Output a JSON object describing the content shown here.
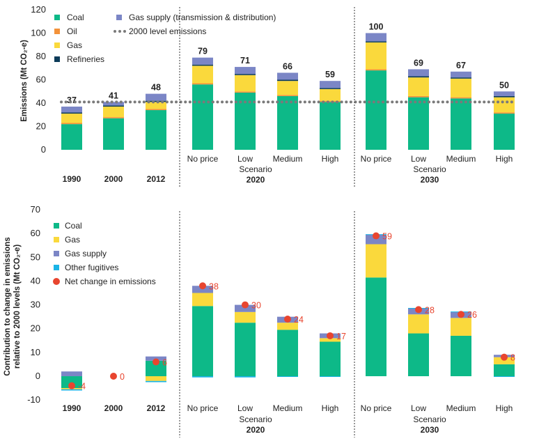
{
  "colors": {
    "coal": "#0db988",
    "oil": "#f3923a",
    "gas": "#fad93c",
    "refineries": "#0c3b59",
    "gas_supply": "#7b86c6",
    "other_fugitives": "#1ab4e6",
    "net": "#e8452f",
    "baseline": "#7a7a7a"
  },
  "chart_data": [
    {
      "type": "bar",
      "stacked": true,
      "ylabel": "Emissions (Mt CO₂-e)",
      "ylim": [
        0,
        120
      ],
      "yticks": [
        0,
        20,
        40,
        60,
        80,
        100,
        120
      ],
      "legend": {
        "col1": [
          "Coal",
          "Oil",
          "Gas",
          "Refineries"
        ],
        "col2": [
          "Gas supply (transmission & distribution)",
          "2000 level emissions"
        ]
      },
      "baseline": {
        "name": "2000 level emissions",
        "value": 41
      },
      "groups": [
        {
          "label": "1990",
          "scenario_label": "",
          "categories": [
            ""
          ]
        },
        {
          "label": "2000",
          "scenario_label": "",
          "categories": [
            ""
          ]
        },
        {
          "label": "2012",
          "scenario_label": "",
          "categories": [
            ""
          ]
        },
        {
          "label": "2020",
          "scenario_label": "Scenario",
          "categories": [
            "No price",
            "Low",
            "Medium",
            "High"
          ]
        },
        {
          "label": "2030",
          "scenario_label": "Scenario",
          "categories": [
            "No price",
            "Low",
            "Medium",
            "High"
          ]
        }
      ],
      "bars": [
        {
          "coal": 22,
          "oil": 1,
          "gas": 8,
          "refineries": 1,
          "gas_supply": 5,
          "total": "37"
        },
        {
          "coal": 27,
          "oil": 1,
          "gas": 9,
          "refineries": 1,
          "gas_supply": 3,
          "total": "41"
        },
        {
          "coal": 34,
          "oil": 1,
          "gas": 6,
          "refineries": 1,
          "gas_supply": 6,
          "total": "48"
        },
        {
          "coal": 56,
          "oil": 1,
          "gas": 15,
          "refineries": 1,
          "gas_supply": 6,
          "total": "79"
        },
        {
          "coal": 49,
          "oil": 1,
          "gas": 14,
          "refineries": 1,
          "gas_supply": 6,
          "total": "71"
        },
        {
          "coal": 46,
          "oil": 1,
          "gas": 12,
          "refineries": 1,
          "gas_supply": 6,
          "total": "66"
        },
        {
          "coal": 41,
          "oil": 1,
          "gas": 10,
          "refineries": 1,
          "gas_supply": 6,
          "total": "59"
        },
        {
          "coal": 68,
          "oil": 1,
          "gas": 23,
          "refineries": 1,
          "gas_supply": 7,
          "total": "100"
        },
        {
          "coal": 45,
          "oil": 1,
          "gas": 16,
          "refineries": 1,
          "gas_supply": 6,
          "total": "69"
        },
        {
          "coal": 44,
          "oil": 1,
          "gas": 16,
          "refineries": 1,
          "gas_supply": 5,
          "total": "67"
        },
        {
          "coal": 31,
          "oil": 1,
          "gas": 13,
          "refineries": 1,
          "gas_supply": 4,
          "total": "50"
        }
      ]
    },
    {
      "type": "bar",
      "stacked": true,
      "ylabel_line1": "Contribution to change in emissions",
      "ylabel_line2": "relative to 2000 levels (Mt CO₂-e)",
      "ylim": [
        -10,
        70
      ],
      "yticks": [
        -10,
        0,
        10,
        20,
        30,
        40,
        50,
        60,
        70
      ],
      "legend": [
        "Coal",
        "Gas",
        "Gas supply",
        "Other fugitives",
        "Net change in emissions"
      ],
      "groups": [
        {
          "label": "1990",
          "scenario_label": "",
          "categories": [
            ""
          ]
        },
        {
          "label": "2000",
          "scenario_label": "",
          "categories": [
            ""
          ]
        },
        {
          "label": "2012",
          "scenario_label": "",
          "categories": [
            ""
          ]
        },
        {
          "label": "2020",
          "scenario_label": "Scenario",
          "categories": [
            "No price",
            "Low",
            "Medium",
            "High"
          ]
        },
        {
          "label": "2030",
          "scenario_label": "Scenario",
          "categories": [
            "No price",
            "Low",
            "Medium",
            "High"
          ]
        }
      ],
      "bars": [
        {
          "coal": -5,
          "gas": -0.5,
          "gas_supply": 2,
          "other_fugitives": -0.5,
          "net": -4,
          "net_label": "-4"
        },
        {
          "coal": 0,
          "gas": 0,
          "gas_supply": 0,
          "other_fugitives": 0,
          "net": 0,
          "net_label": "0"
        },
        {
          "coal": 6.5,
          "gas": -2,
          "gas_supply": 1.8,
          "other_fugitives": -0.5,
          "net": 6,
          "net_label": "6"
        },
        {
          "coal": 29.5,
          "gas": 5.5,
          "gas_supply": 3,
          "other_fugitives": -0.5,
          "net": 38,
          "net_label": "38"
        },
        {
          "coal": 22.5,
          "gas": 4.5,
          "gas_supply": 3,
          "other_fugitives": -0.5,
          "net": 30,
          "net_label": "30"
        },
        {
          "coal": 19.5,
          "gas": 3,
          "gas_supply": 2.5,
          "other_fugitives": -0.3,
          "net": 24,
          "net_label": "24"
        },
        {
          "coal": 14.5,
          "gas": 1.5,
          "gas_supply": 2,
          "other_fugitives": -0.3,
          "net": 17,
          "net_label": "17"
        },
        {
          "coal": 41.5,
          "gas": 14,
          "gas_supply": 4,
          "other_fugitives": 0.2,
          "net": 59,
          "net_label": "59"
        },
        {
          "coal": 18,
          "gas": 8,
          "gas_supply": 2.5,
          "other_fugitives": 0.2,
          "net": 28,
          "net_label": "28"
        },
        {
          "coal": 17,
          "gas": 7.5,
          "gas_supply": 2.5,
          "other_fugitives": 0.2,
          "net": 26,
          "net_label": "26"
        },
        {
          "coal": 5,
          "gas": 3,
          "gas_supply": 1,
          "other_fugitives": -0.3,
          "net": 8,
          "net_label": "8"
        }
      ]
    }
  ]
}
